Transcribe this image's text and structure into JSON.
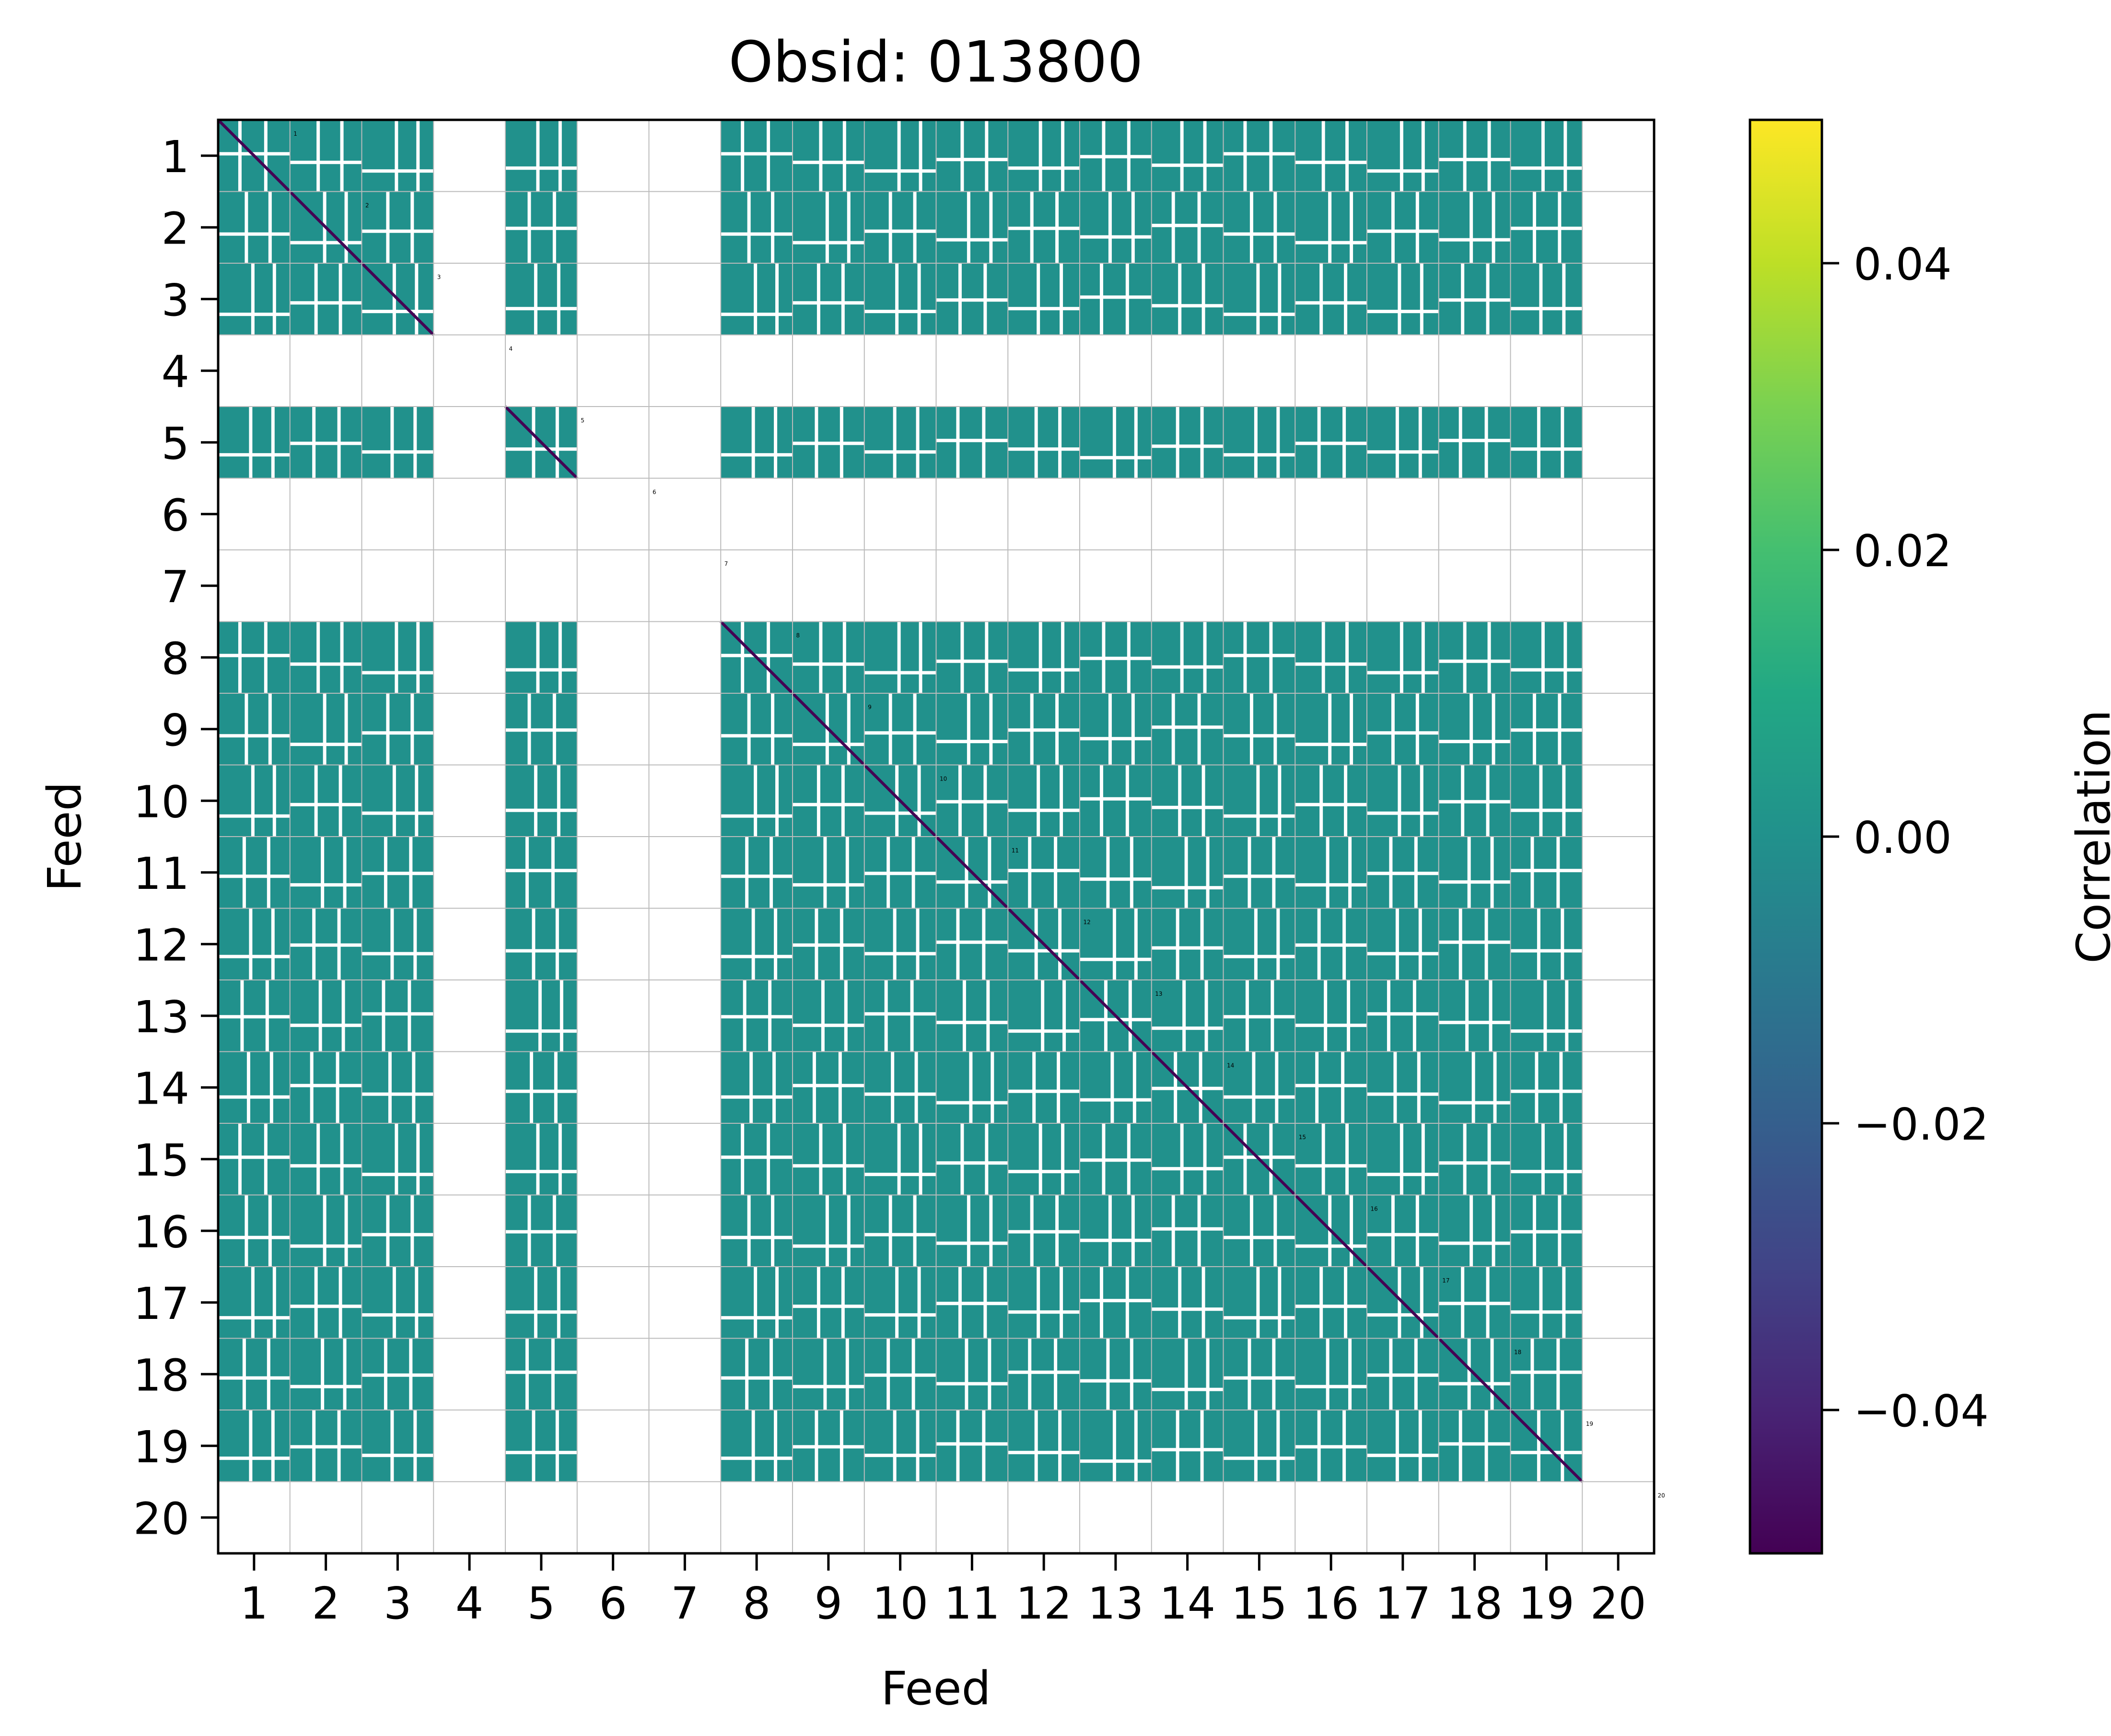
{
  "chart_data": {
    "type": "heatmap",
    "title": "Obsid: 013800",
    "xlabel": "Feed",
    "ylabel": "Feed",
    "feeds": [
      1,
      2,
      3,
      4,
      5,
      6,
      7,
      8,
      9,
      10,
      11,
      12,
      13,
      14,
      15,
      16,
      17,
      18,
      19,
      20
    ],
    "x_ticks": [
      "1",
      "2",
      "3",
      "4",
      "5",
      "6",
      "7",
      "8",
      "9",
      "10",
      "11",
      "12",
      "13",
      "14",
      "15",
      "16",
      "17",
      "18",
      "19",
      "20"
    ],
    "y_ticks": [
      "1",
      "2",
      "3",
      "4",
      "5",
      "6",
      "7",
      "8",
      "9",
      "10",
      "11",
      "12",
      "13",
      "14",
      "15",
      "16",
      "17",
      "18",
      "19",
      "20"
    ],
    "colorbar": {
      "label": "Correlation",
      "colormap": "viridis",
      "vmin": -0.05,
      "vmax": 0.05,
      "ticks": [
        -0.04,
        -0.02,
        0.0,
        0.02,
        0.04
      ],
      "tick_labels": [
        "−0.04",
        "−0.02",
        "0.00",
        "0.02",
        "0.04"
      ]
    },
    "valid_feeds": [
      1,
      2,
      3,
      5,
      8,
      9,
      10,
      11,
      12,
      13,
      14,
      15,
      16,
      17,
      18,
      19
    ],
    "empty_feeds": [
      4,
      6,
      7,
      20
    ],
    "cell_value": 0.0,
    "diagonal_value": -0.045,
    "feed_labels": [
      "1",
      "2",
      "3",
      "4",
      "5",
      "6",
      "7",
      "8",
      "9",
      "10",
      "11",
      "12",
      "13",
      "14",
      "15",
      "16",
      "17",
      "18",
      "19",
      "20"
    ]
  },
  "colors": {
    "cell": "#21918c",
    "diagonal": "#440154",
    "grid": "#bbbbbb",
    "axis": "#000000"
  }
}
